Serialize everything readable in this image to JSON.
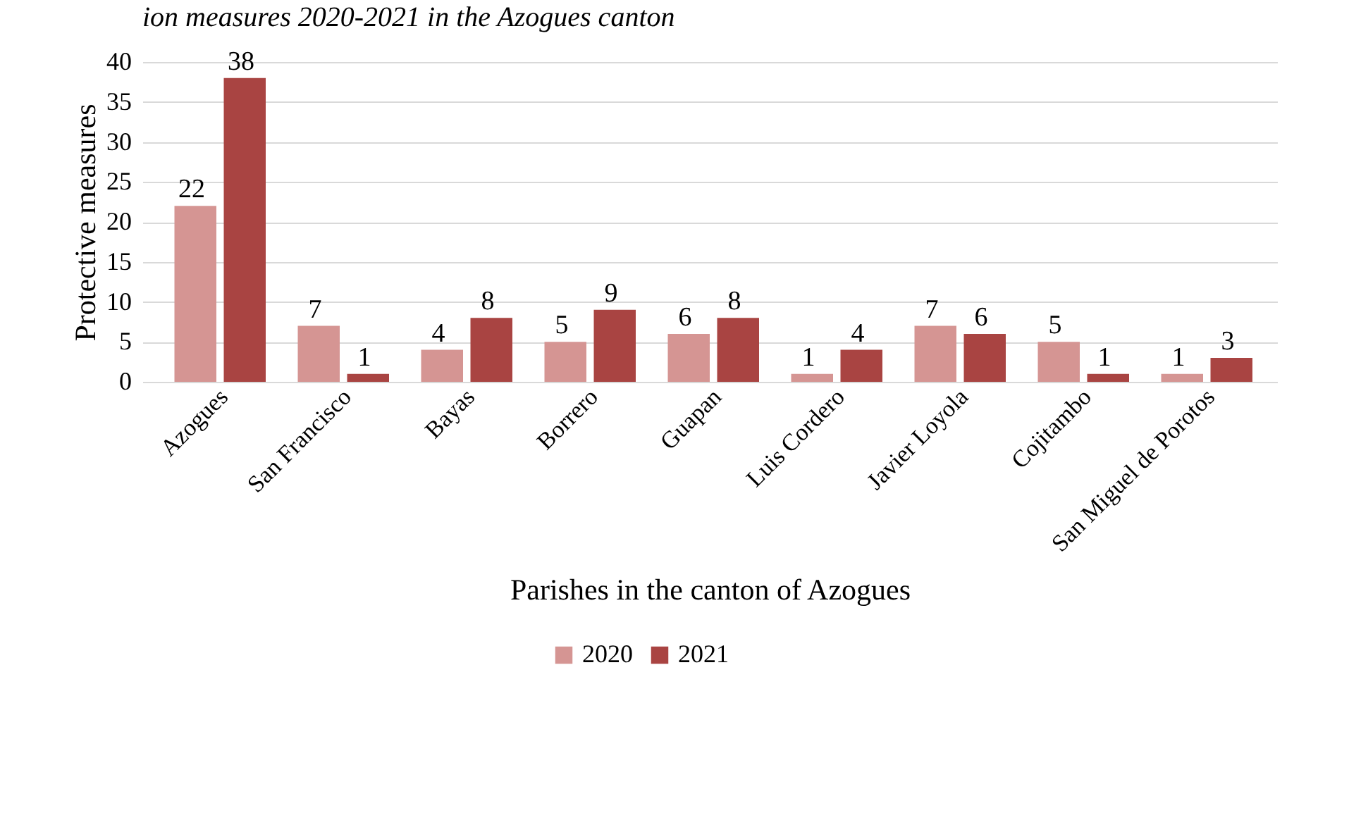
{
  "chart_data": {
    "type": "bar",
    "title": "ion measures 2020-2021 in the Azogues canton",
    "xlabel": "Parishes in the canton of Azogues",
    "ylabel": "Protective measures",
    "categories": [
      "Azogues",
      "San Francisco",
      "Bayas",
      "Borrero",
      "Guapan",
      "Luis Cordero",
      "Javier Loyola",
      "Cojitambo",
      "San Miguel de Porotos"
    ],
    "series": [
      {
        "name": "2020",
        "color": "#d59593",
        "values": [
          22,
          7,
          4,
          5,
          6,
          1,
          7,
          5,
          1
        ]
      },
      {
        "name": "2021",
        "color": "#a94442",
        "values": [
          38,
          1,
          8,
          9,
          8,
          4,
          6,
          1,
          3
        ]
      }
    ],
    "ylim": [
      0,
      40
    ],
    "yticks": [
      0,
      5,
      10,
      15,
      20,
      25,
      30,
      35,
      40
    ],
    "grid": "y",
    "legend": "bottom",
    "data_labels": true
  }
}
